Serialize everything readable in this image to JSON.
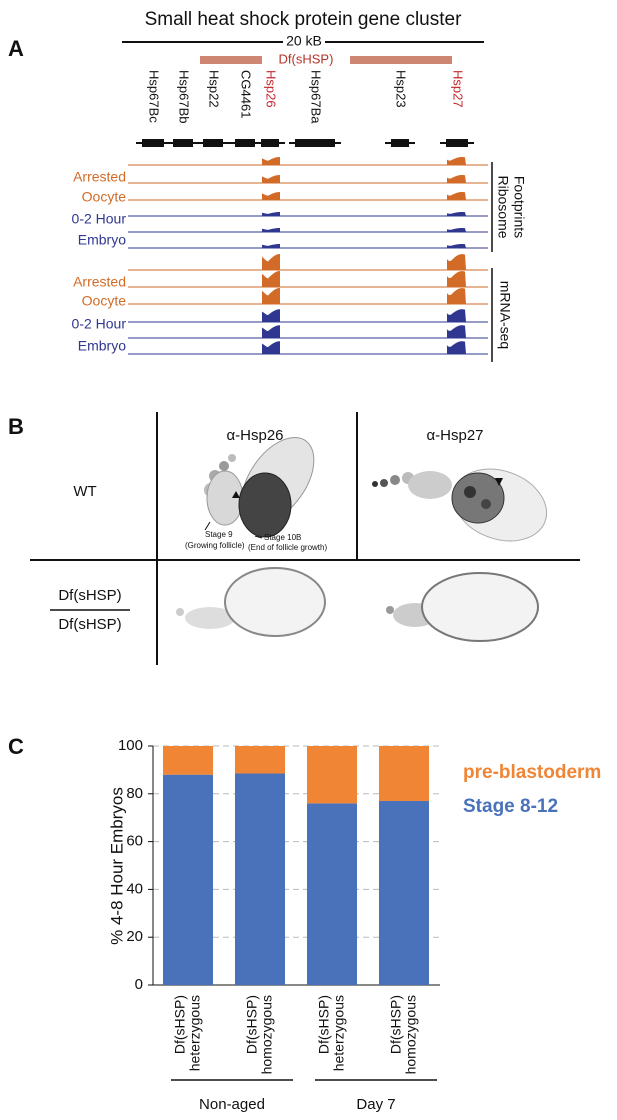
{
  "panel_a": {
    "label": "A",
    "title": "Small heat shock protein gene cluster",
    "scale": "20 kB",
    "deletion": "Df(sHSP)",
    "genes": [
      {
        "name": "Hsp67Bc",
        "color": "#111111"
      },
      {
        "name": "Hsp67Bb",
        "color": "#111111"
      },
      {
        "name": "Hsp22",
        "color": "#111111"
      },
      {
        "name": "CG4461",
        "color": "#111111"
      },
      {
        "name": "Hsp26",
        "color": "#c8262c"
      },
      {
        "name": "Hsp67Ba",
        "color": "#111111"
      },
      {
        "name": "Hsp23",
        "color": "#111111"
      },
      {
        "name": "Hsp27",
        "color": "#c8262c"
      }
    ],
    "footprints": {
      "label": [
        "Ribosome",
        "Footprints"
      ],
      "oocyte": [
        "Arrested",
        "Oocyte"
      ],
      "embryo": [
        "0-2 Hour",
        "Embryo"
      ]
    },
    "mrna": {
      "label": "mRNA-seq",
      "oocyte": [
        "Arrested",
        "Oocyte"
      ],
      "embryo": [
        "0-2 Hour",
        "Embryo"
      ]
    }
  },
  "panel_b": {
    "label": "B",
    "columns": [
      "α-Hsp26",
      "α-Hsp27"
    ],
    "rows": [
      "WT",
      [
        "Df(sHSP)",
        "Df(sHSP)"
      ]
    ],
    "annotations": {
      "stage9": [
        "Stage 9",
        "(Growing follicle)"
      ],
      "stage10b": [
        "Stage 10B",
        "(End of follicle growth)"
      ]
    }
  },
  "chart_data": {
    "type": "stacked-bar",
    "label": "C",
    "ylabel": "% 4-8 Hour Embryos",
    "categories": [
      [
        "Df(sHSP)",
        "heterzygous"
      ],
      [
        "Df(sHSP)",
        "homozygous"
      ],
      [
        "Df(sHSP)",
        "heterzygous"
      ],
      [
        "Df(sHSP)",
        "homozygous"
      ]
    ],
    "groups": [
      {
        "name": "Non-aged",
        "members": [
          0,
          1
        ]
      },
      {
        "name": "Day 7",
        "members": [
          2,
          3
        ]
      }
    ],
    "series": [
      {
        "name": "Stage 8-12",
        "color": "#4a72bb",
        "values": [
          88,
          88.5,
          76,
          77
        ]
      },
      {
        "name": "pre-blastoderm",
        "color": "#ef8535",
        "values": [
          12,
          11.5,
          24,
          23
        ]
      }
    ],
    "ylim": [
      0,
      100
    ],
    "yticks": [
      0,
      20,
      40,
      60,
      80,
      100
    ],
    "grid": true
  }
}
